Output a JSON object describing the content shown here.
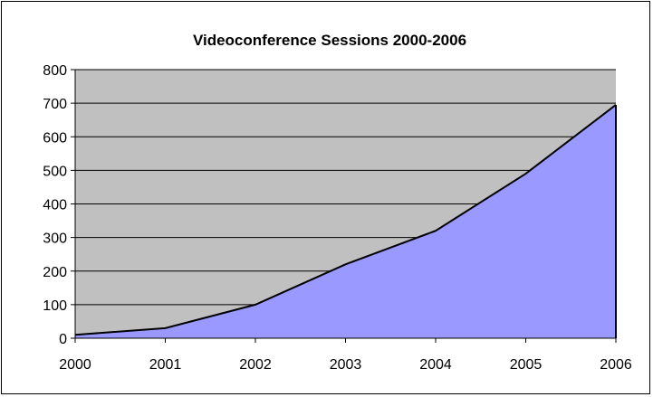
{
  "chart_data": {
    "type": "area",
    "title": "Videoconference Sessions 2000-2006",
    "x": [
      "2000",
      "2001",
      "2002",
      "2003",
      "2004",
      "2005",
      "2006"
    ],
    "series": [
      {
        "values": [
          10,
          30,
          100,
          220,
          320,
          490,
          695
        ]
      }
    ],
    "ylim": [
      0,
      800
    ],
    "yticks": [
      0,
      100,
      200,
      300,
      400,
      500,
      600,
      700,
      800
    ],
    "grid": true,
    "legend": "none",
    "colors": {
      "plot_background": "#c0c0c0",
      "area_fill": "#9999ff",
      "line": "#000000",
      "gridline": "#000000"
    }
  }
}
